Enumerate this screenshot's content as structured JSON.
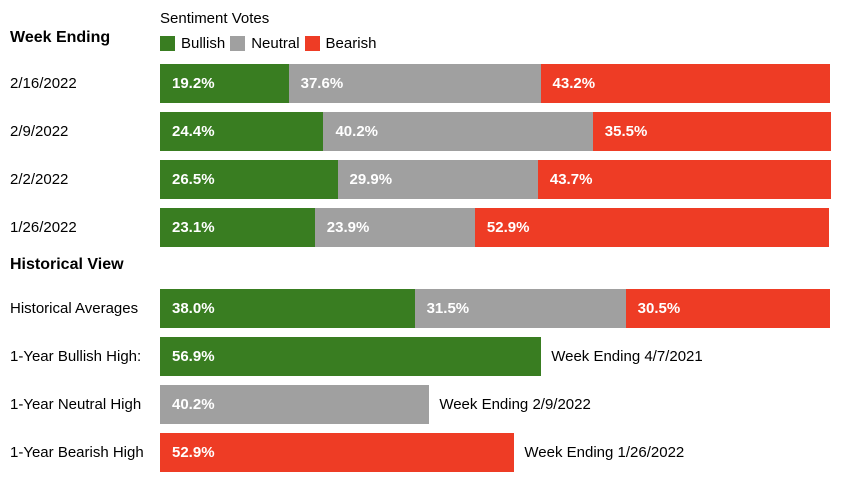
{
  "colors": {
    "bullish": "#397d21",
    "neutral": "#a0a0a0",
    "bearish": "#ee3c25",
    "value_text": "#ffffff",
    "text": "#000000",
    "background": "#ffffff"
  },
  "chart_data": {
    "type": "bar",
    "orientation": "horizontal-stacked",
    "title": "Sentiment Votes",
    "legend": [
      {
        "label": "Bullish",
        "color": "#397d21"
      },
      {
        "label": "Neutral",
        "color": "#a0a0a0"
      },
      {
        "label": "Bearish",
        "color": "#ee3c25"
      }
    ],
    "legend_position": "top",
    "x_range_percent": [
      0,
      100
    ],
    "weekly": {
      "heading": "Week Ending",
      "rows": [
        {
          "label": "2/16/2022",
          "bullish": 19.2,
          "neutral": 37.6,
          "bearish": 43.2,
          "bullish_label": "19.2%",
          "neutral_label": "37.6%",
          "bearish_label": "43.2%"
        },
        {
          "label": "2/9/2022",
          "bullish": 24.4,
          "neutral": 40.2,
          "bearish": 35.5,
          "bullish_label": "24.4%",
          "neutral_label": "40.2%",
          "bearish_label": "35.5%"
        },
        {
          "label": "2/2/2022",
          "bullish": 26.5,
          "neutral": 29.9,
          "bearish": 43.7,
          "bullish_label": "26.5%",
          "neutral_label": "29.9%",
          "bearish_label": "43.7%"
        },
        {
          "label": "1/26/2022",
          "bullish": 23.1,
          "neutral": 23.9,
          "bearish": 52.9,
          "bullish_label": "23.1%",
          "neutral_label": "23.9%",
          "bearish_label": "52.9%"
        }
      ]
    },
    "historical": {
      "heading": "Historical View",
      "averages": {
        "label": "Historical Averages",
        "bullish": 38.0,
        "neutral": 31.5,
        "bearish": 30.5,
        "bullish_label": "38.0%",
        "neutral_label": "31.5%",
        "bearish_label": "30.5%"
      },
      "highs": [
        {
          "label": "1-Year Bullish High:",
          "series": "bullish",
          "value": 56.9,
          "value_label": "56.9%",
          "annotation": "Week Ending 4/7/2021"
        },
        {
          "label": "1-Year Neutral High",
          "series": "neutral",
          "value": 40.2,
          "value_label": "40.2%",
          "annotation": "Week Ending 2/9/2022"
        },
        {
          "label": "1-Year Bearish High",
          "series": "bearish",
          "value": 52.9,
          "value_label": "52.9%",
          "annotation": "Week Ending 1/26/2022"
        }
      ]
    }
  }
}
